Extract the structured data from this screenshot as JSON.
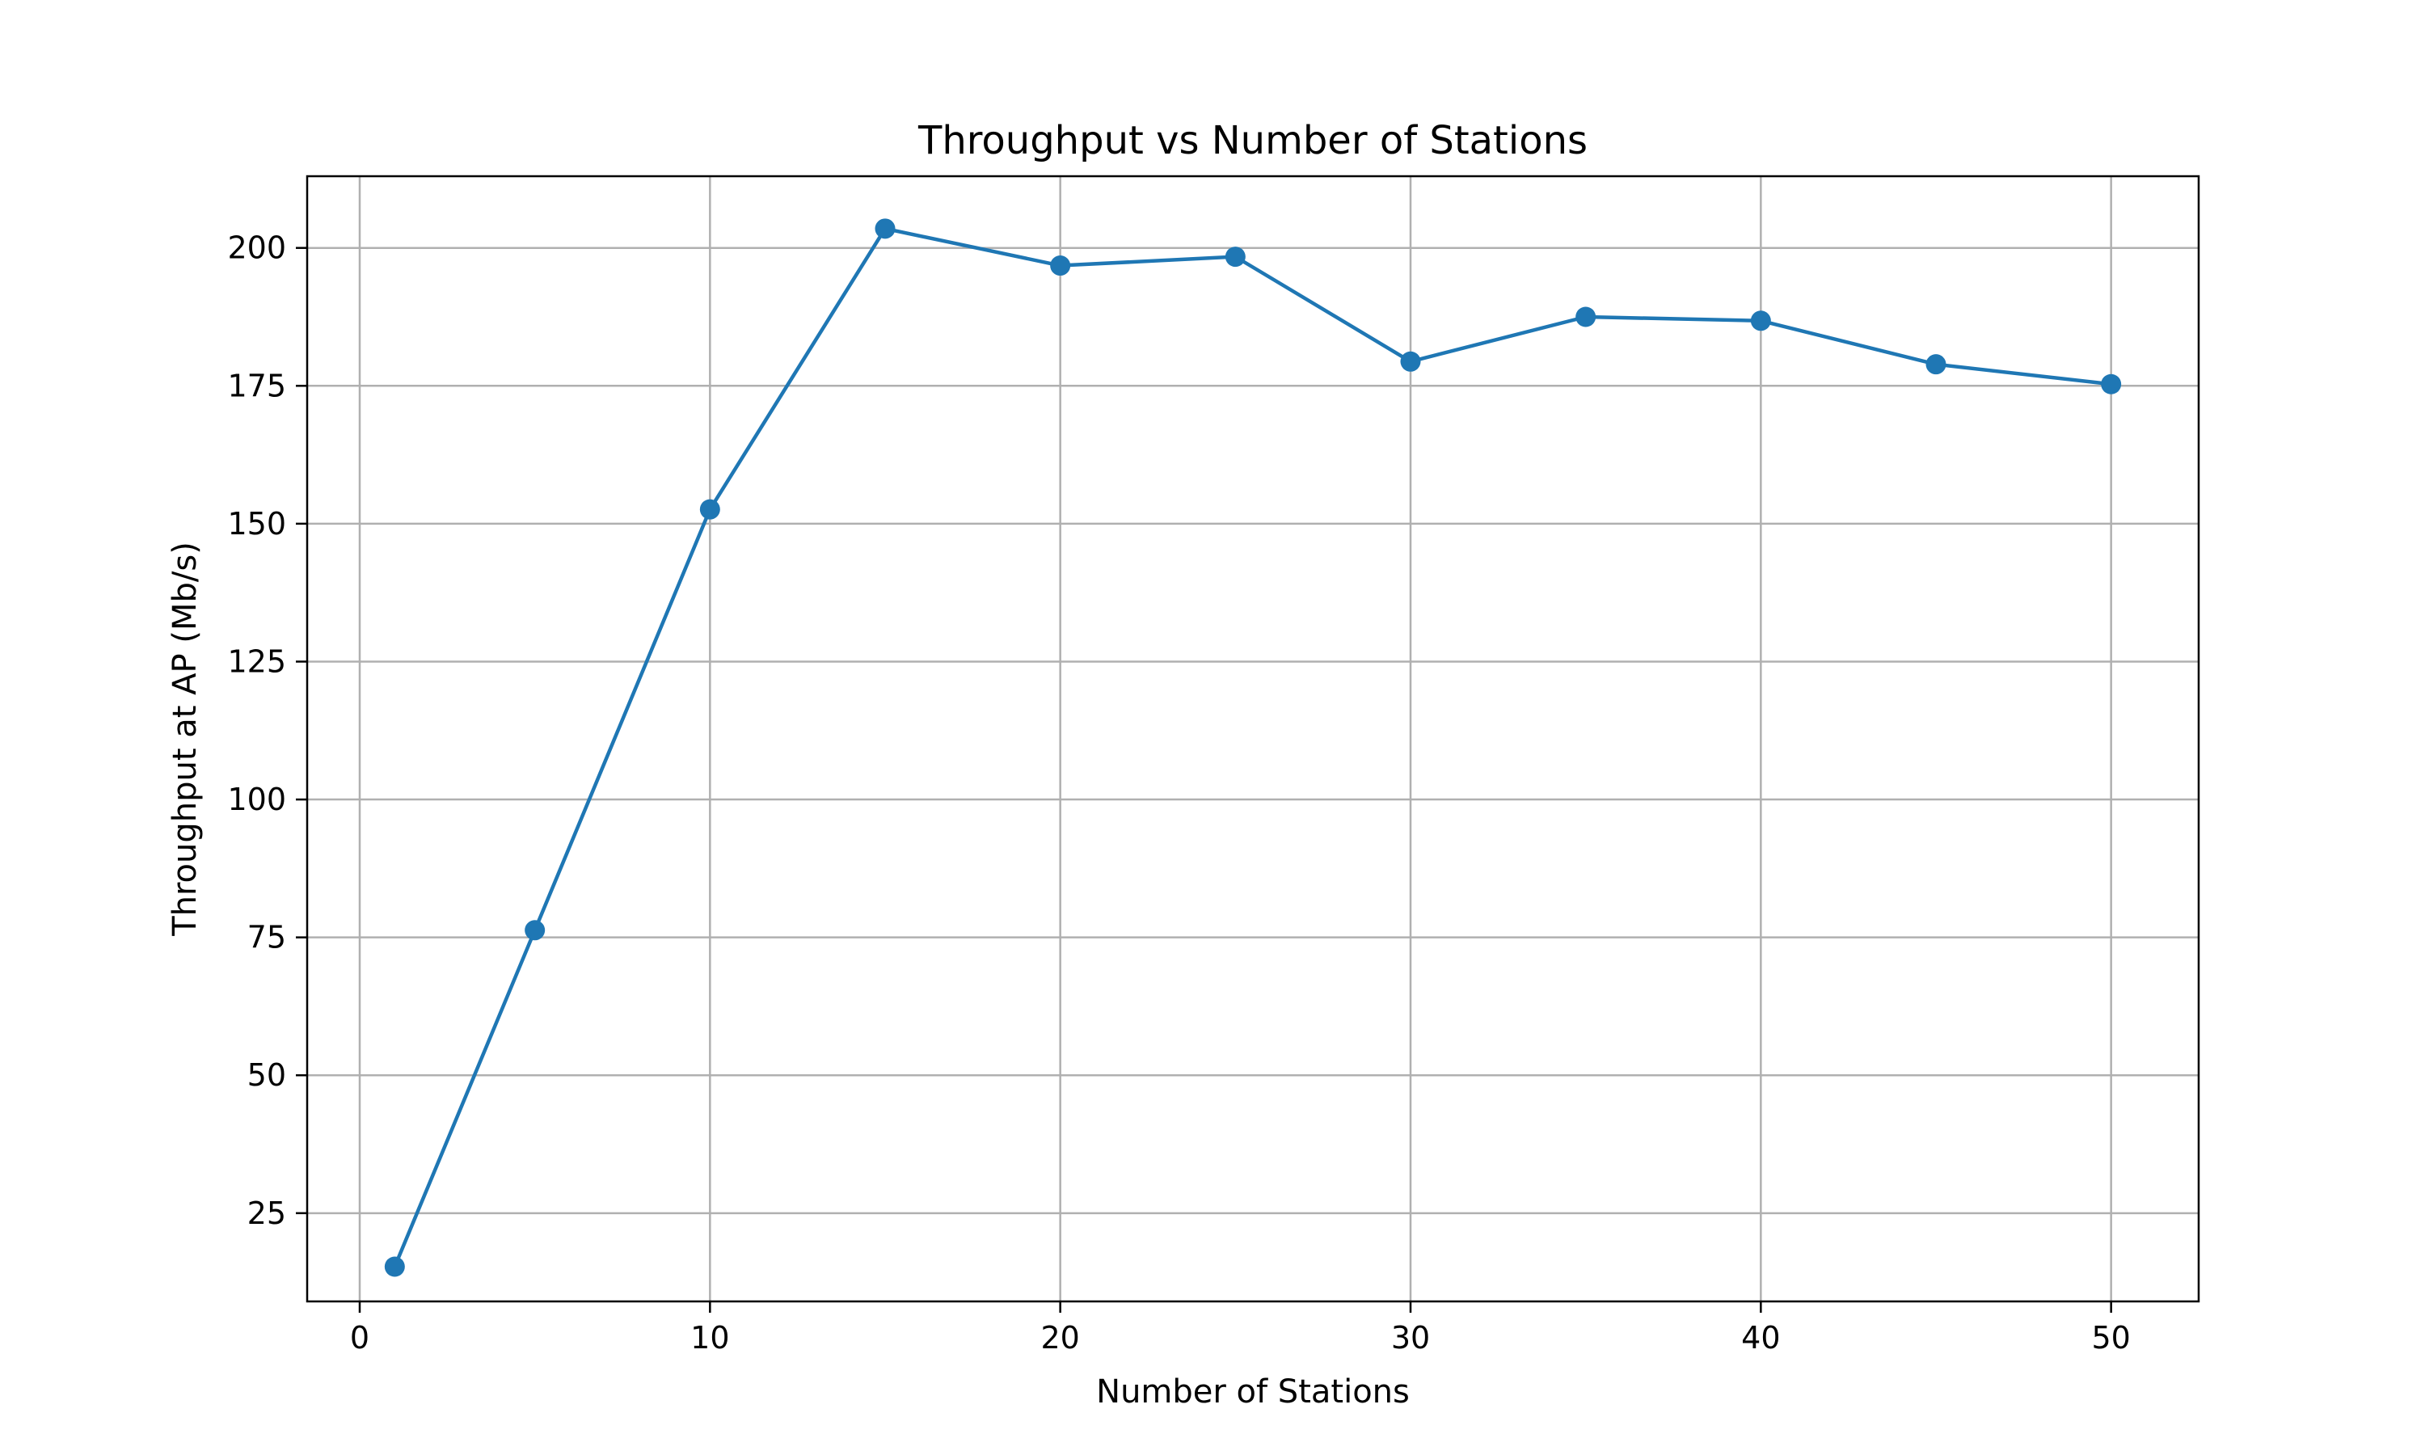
{
  "chart_data": {
    "type": "line",
    "title": "Throughput vs Number of Stations",
    "xlabel": "Number of Stations",
    "ylabel": "Throughput at AP (Mb/s)",
    "xlim": [
      -1.5,
      52.5
    ],
    "ylim": [
      9,
      213
    ],
    "xticks": [
      0,
      10,
      20,
      30,
      40,
      50
    ],
    "yticks": [
      25,
      50,
      75,
      100,
      125,
      150,
      175,
      200
    ],
    "grid": true,
    "series": [
      {
        "color": "#1f77b4",
        "marker": "circle",
        "x": [
          1,
          5,
          10,
          15,
          20,
          25,
          30,
          35,
          40,
          45,
          50
        ],
        "y": [
          15.3,
          76.3,
          152.6,
          203.5,
          196.8,
          198.4,
          179.4,
          187.5,
          186.8,
          178.9,
          175.3
        ]
      }
    ]
  }
}
